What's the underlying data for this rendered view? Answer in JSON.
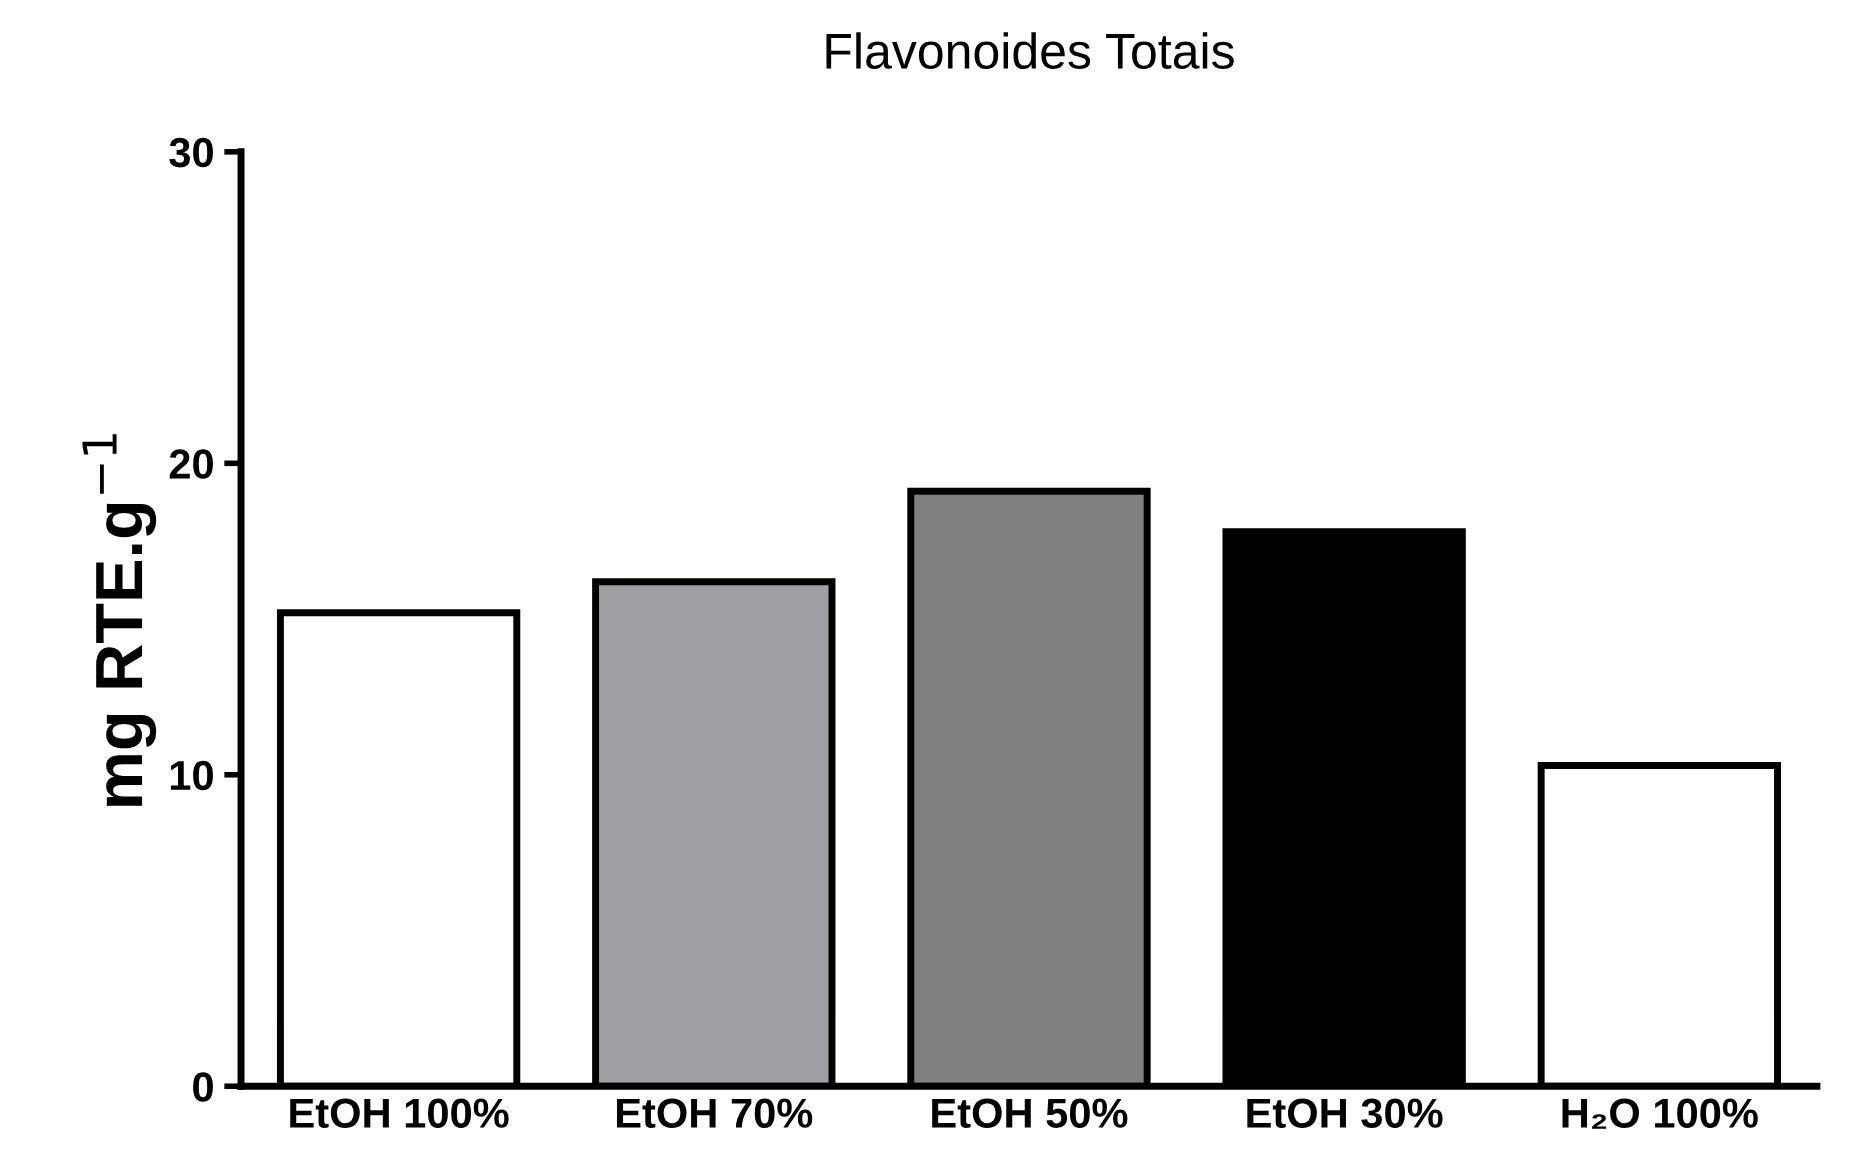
{
  "chart_data": {
    "type": "bar",
    "title": "Flavonoides Totais",
    "ylabel": "mg RTE.g$^{−1}$",
    "categories": [
      "EtOH 100%",
      "EtOH 70%",
      "EtOH 50%",
      "EtOH 30%",
      "H₂O 100%"
    ],
    "values": [
      15.2,
      16.2,
      19.1,
      17.8,
      10.3
    ],
    "colors": [
      "#ffffff",
      "#a0a0a4",
      "#808080",
      "#000000",
      "#ffffff"
    ],
    "ylim": [
      0,
      30
    ],
    "yticks": [
      0,
      10,
      20,
      30
    ],
    "grid": false,
    "legend": false
  }
}
